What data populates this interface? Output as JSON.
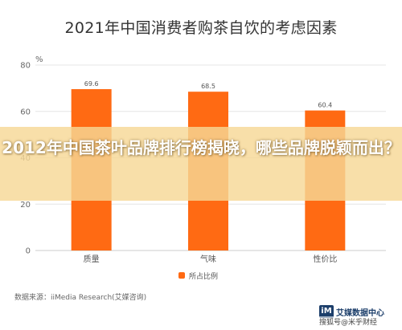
{
  "chart_data": {
    "type": "bar",
    "title": "2021年中国消费者购茶自饮的考虑因素",
    "unit": "%",
    "categories": [
      "质量",
      "气味",
      "性价比"
    ],
    "series": [
      {
        "name": "所占比例",
        "values": [
          69.6,
          68.5,
          60.4
        ]
      }
    ],
    "data_labels": [
      "69.6",
      "68.5",
      "60.4"
    ],
    "ylim": [
      0,
      80
    ],
    "yticks": [
      0,
      20,
      40,
      60,
      80
    ],
    "grid": true,
    "legend": "bottom"
  },
  "colors": {
    "bar": "#ff6a13",
    "grid": "#e6e6e6",
    "axis": "#cccccc"
  },
  "overlay": {
    "headline": "2012年中国茶叶品牌排行榜揭晓，哪些品牌脱颖而出？"
  },
  "source": "数据来源：iiMedia Research(艾媒咨询)",
  "brand": {
    "logo_icon": "iimedia-logo-icon",
    "logo_text": "艾媒数据中心"
  },
  "watermark": "搜狐号@米乎财经"
}
